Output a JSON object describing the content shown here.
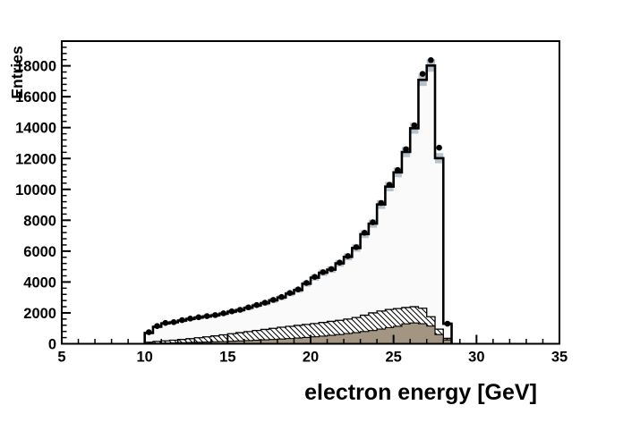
{
  "chart_data": {
    "type": "bar",
    "subtype": "root-style-stacked-histogram-with-data-points",
    "title": "",
    "xlabel": "electron energy [GeV]",
    "ylabel": "Entries",
    "axes": {
      "x": {
        "min": 5,
        "max": 35,
        "major_step": 5,
        "minor_step": 1,
        "tick_labels": [
          "5",
          "10",
          "15",
          "20",
          "25",
          "30",
          "35"
        ]
      },
      "y": {
        "min": 0,
        "max": 19600,
        "major_step": 2000,
        "minor_step": 400,
        "tick_labels": [
          "0",
          "2000",
          "4000",
          "6000",
          "8000",
          "10000",
          "12000",
          "14000",
          "16000",
          "18000"
        ]
      }
    },
    "grid": false,
    "legend": "none",
    "bins": {
      "start": 10.0,
      "width": 0.5,
      "count": 37
    },
    "series": [
      {
        "name": "main-histogram",
        "type": "step-histogram",
        "fill": "#fafafa",
        "line": "#000000",
        "values": [
          700,
          1100,
          1320,
          1390,
          1500,
          1610,
          1700,
          1770,
          1840,
          1950,
          2080,
          2180,
          2330,
          2480,
          2630,
          2810,
          3000,
          3250,
          3480,
          3890,
          4280,
          4600,
          4800,
          5210,
          5630,
          6200,
          7100,
          7780,
          9020,
          10180,
          11100,
          12420,
          13960,
          17090,
          18020,
          12020,
          1300
        ]
      },
      {
        "name": "mc-error-band",
        "type": "bin-error-boxes",
        "color": "#b7c2cb",
        "error_scale_sqrt": 3
      },
      {
        "name": "hatched-histogram",
        "type": "step-histogram-hatched",
        "hatch": "diagonal-down",
        "line": "#000000",
        "fill": "#ffffff",
        "values": [
          100,
          150,
          190,
          230,
          280,
          330,
          390,
          450,
          510,
          580,
          650,
          720,
          790,
          860,
          930,
          1000,
          1070,
          1130,
          1190,
          1250,
          1310,
          1380,
          1450,
          1520,
          1600,
          1700,
          1850,
          2000,
          2120,
          2220,
          2280,
          2350,
          2400,
          2300,
          1750,
          950,
          350
        ]
      },
      {
        "name": "brown-histogram",
        "type": "step-histogram-filled",
        "fill": "#a29682",
        "line": "#000000",
        "values": [
          25,
          35,
          45,
          55,
          70,
          85,
          100,
          115,
          130,
          145,
          165,
          185,
          205,
          230,
          255,
          280,
          310,
          340,
          375,
          410,
          450,
          495,
          545,
          600,
          660,
          720,
          790,
          860,
          950,
          1050,
          1130,
          1290,
          1350,
          1300,
          1150,
          600,
          250
        ]
      },
      {
        "name": "data-points",
        "type": "scatter-markers",
        "marker": "filled-circle",
        "color": "#000000",
        "values": [
          750,
          1150,
          1350,
          1400,
          1530,
          1630,
          1720,
          1790,
          1860,
          1970,
          2100,
          2200,
          2360,
          2510,
          2660,
          2840,
          3030,
          3290,
          3520,
          3940,
          4330,
          4640,
          4840,
          5260,
          5680,
          6260,
          7190,
          7870,
          9120,
          10300,
          11250,
          12600,
          14150,
          17480,
          18370,
          12700,
          1300
        ]
      }
    ],
    "colors": {
      "frame": "#000000",
      "background": "#ffffff",
      "error_band": "#b7c2cb",
      "main_fill": "#fafafa",
      "brown_fill": "#a29682"
    }
  }
}
